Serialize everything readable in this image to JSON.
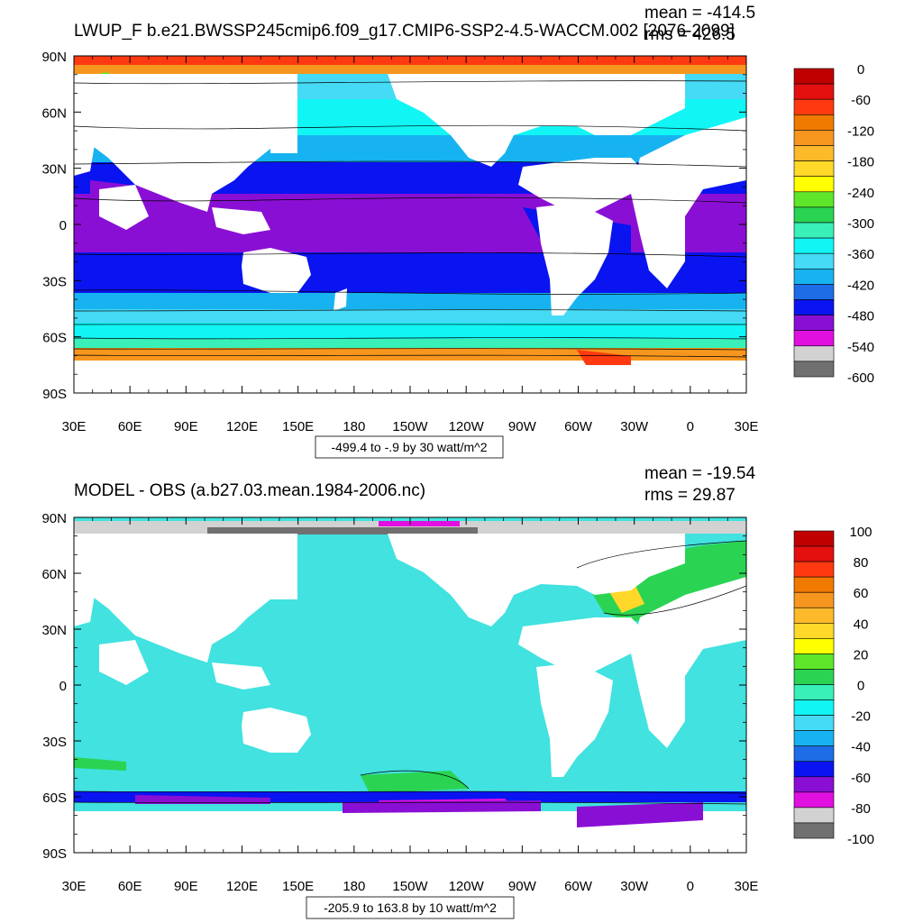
{
  "panels": [
    {
      "title": "LWUP_F b.e21.BWSSP245cmip6.f09_g17.CMIP6-SSP2-4.5-WACCM.002 [2076-2099]",
      "stats": [
        "mean = -414.5",
        "rms = 426.5"
      ],
      "contour_info": "-499.4 to -.9 by 30 watt/m^2",
      "y_ticks": [
        "90N",
        "60N",
        "30N",
        "0",
        "30S",
        "60S",
        "90S"
      ],
      "x_ticks": [
        "30E",
        "60E",
        "90E",
        "120E",
        "150E",
        "180",
        "150W",
        "120W",
        "90W",
        "60W",
        "30W",
        "0",
        "30E"
      ],
      "colorbar": {
        "labels": [
          "0",
          "-60",
          "-120",
          "-180",
          "-240",
          "-300",
          "-360",
          "-420",
          "-480",
          "-540",
          "-600"
        ],
        "colors": [
          "#c00000",
          "#e41010",
          "#ff3a10",
          "#f07a00",
          "#f7961e",
          "#fcb92a",
          "#ffd82a",
          "#ffff00",
          "#5fe62a",
          "#2ad452",
          "#38f0b8",
          "#12f5f5",
          "#45daf5",
          "#17b3f0",
          "#1e6de6",
          "#0a14f0",
          "#8a0fd4",
          "#e010e0",
          "#d2d2d2",
          "#707070"
        ]
      }
    },
    {
      "title": "MODEL - OBS (a.b27.03.mean.1984-2006.nc)",
      "stats": [
        "mean = -19.54",
        "rms = 29.87"
      ],
      "contour_info": "-205.9 to 163.8 by 10 watt/m^2",
      "y_ticks": [
        "90N",
        "60N",
        "30N",
        "0",
        "30S",
        "60S",
        "90S"
      ],
      "x_ticks": [
        "30E",
        "60E",
        "90E",
        "120E",
        "150E",
        "180",
        "150W",
        "120W",
        "90W",
        "60W",
        "30W",
        "0",
        "30E"
      ],
      "colorbar": {
        "labels": [
          "100",
          "80",
          "60",
          "40",
          "20",
          "0",
          "-20",
          "-40",
          "-60",
          "-80",
          "-100"
        ],
        "colors": [
          "#c00000",
          "#e41010",
          "#ff3a10",
          "#f07a00",
          "#f7961e",
          "#fcb92a",
          "#ffd82a",
          "#ffff00",
          "#5fe62a",
          "#2ad452",
          "#38f0b8",
          "#12f5f5",
          "#45daf5",
          "#17b3f0",
          "#1e6de6",
          "#0a14f0",
          "#8a0fd4",
          "#e010e0",
          "#d2d2d2",
          "#707070"
        ]
      }
    }
  ]
}
